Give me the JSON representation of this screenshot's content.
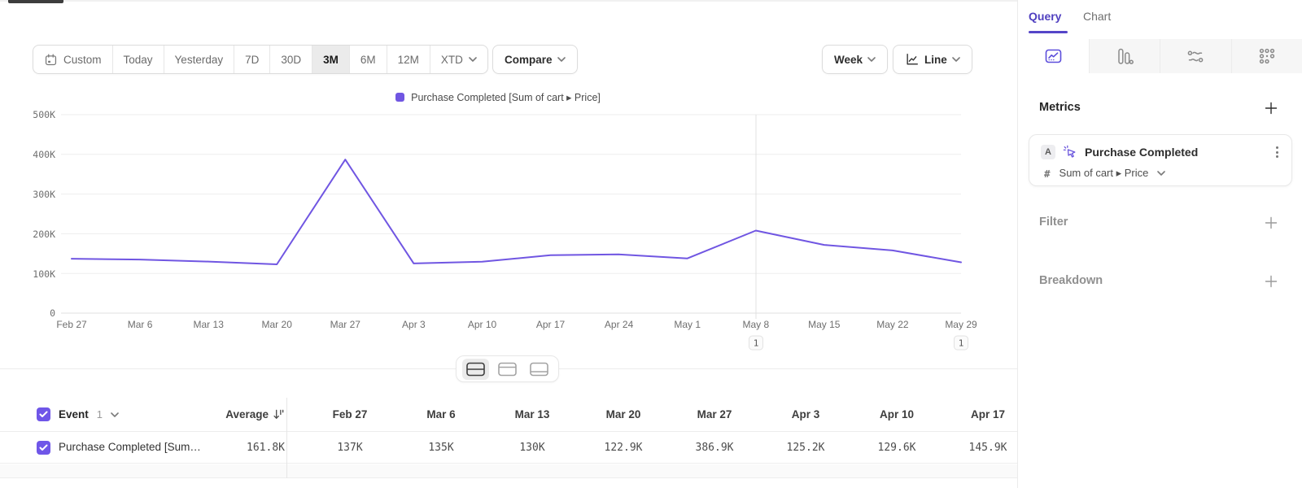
{
  "colors": {
    "accent": "#7056e2",
    "tab_active": "#5040c0",
    "selected_segment_bg": "#ebebeb"
  },
  "toolbar": {
    "ranges": [
      {
        "label": "Custom"
      },
      {
        "label": "Today"
      },
      {
        "label": "Yesterday"
      },
      {
        "label": "7D"
      },
      {
        "label": "30D"
      },
      {
        "label": "3M"
      },
      {
        "label": "6M"
      },
      {
        "label": "12M"
      },
      {
        "label": "XTD"
      }
    ],
    "selected_range": "3M",
    "compare_label": "Compare",
    "granularity_label": "Week",
    "chart_type_label": "Line"
  },
  "legend": {
    "label": "Purchase Completed [Sum of cart ▸ Price]"
  },
  "chart_data": {
    "type": "line",
    "x": [
      "Feb 27",
      "Mar 6",
      "Mar 13",
      "Mar 20",
      "Mar 27",
      "Apr 3",
      "Apr 10",
      "Apr 17",
      "Apr 24",
      "May 1",
      "May 8",
      "May 15",
      "May 22",
      "May 29"
    ],
    "series": [
      {
        "name": "Purchase Completed [Sum of cart ▸ Price]",
        "values": [
          137000,
          135000,
          130000,
          122900,
          386900,
          125200,
          129600,
          145900,
          148000,
          138000,
          208000,
          172000,
          158000,
          128000
        ]
      }
    ],
    "ylim": [
      0,
      500000
    ],
    "ytick_labels": [
      "500K",
      "400K",
      "300K",
      "200K",
      "100K",
      "0"
    ],
    "grid": "horizontal",
    "legend_position": "top-center",
    "line_color": "#7056e2",
    "annotations": [
      {
        "x": "May 8",
        "label": "1"
      },
      {
        "x": "May 29",
        "label": "1"
      }
    ]
  },
  "view_toggle": {
    "options": [
      {
        "name": "split-view"
      },
      {
        "name": "chart-focus-view"
      },
      {
        "name": "table-focus-view"
      }
    ],
    "selected": "split-view"
  },
  "panel": {
    "tabs": [
      {
        "label": "Query"
      },
      {
        "label": "Chart"
      }
    ],
    "active_tab": "Query",
    "viz_types": [
      {
        "name": "insights"
      },
      {
        "name": "funnels"
      },
      {
        "name": "flows"
      },
      {
        "name": "more-charts"
      }
    ],
    "metrics": {
      "title": "Metrics",
      "metric": {
        "letter": "A",
        "name": "Purchase Completed",
        "aggregation": "Sum of cart ▸ Price"
      }
    },
    "filter": {
      "title": "Filter"
    },
    "breakdown": {
      "title": "Breakdown"
    }
  },
  "table": {
    "header": {
      "event": "Event",
      "count": "1",
      "average": "Average"
    },
    "columns": [
      "Feb 27",
      "Mar 6",
      "Mar 13",
      "Mar 20",
      "Mar 27",
      "Apr 3",
      "Apr 10",
      "Apr 17"
    ],
    "row": {
      "name": "Purchase Completed [Sum of cart ▸ Price]",
      "average": "161.8K",
      "values": [
        "137K",
        "135K",
        "130K",
        "122.9K",
        "386.9K",
        "125.2K",
        "129.6K",
        "145.9K"
      ]
    }
  }
}
